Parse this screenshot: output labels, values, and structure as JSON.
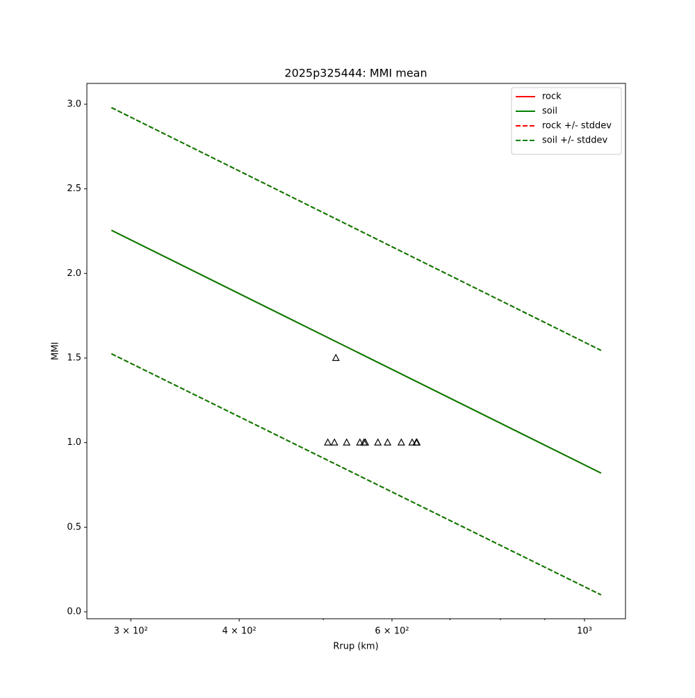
{
  "chart_data": {
    "type": "line",
    "title": "2025p325444: MMI mean",
    "xlabel": "Rrup (km)",
    "ylabel": "MMI",
    "xscale": "log",
    "xlim": [
      267,
      1115
    ],
    "ylim": [
      -0.041,
      3.123
    ],
    "xticks": [
      {
        "value": 300,
        "label": "3 × 10²"
      },
      {
        "value": 400,
        "label": "4 × 10²"
      },
      {
        "value": 600,
        "label": "6 × 10²"
      },
      {
        "value": 1000,
        "label": "10³"
      }
    ],
    "xminorticks": [
      500,
      700,
      800,
      900
    ],
    "yticks": [
      {
        "value": 0,
        "label": "0.0"
      },
      {
        "value": 0.5,
        "label": "0.5"
      },
      {
        "value": 1,
        "label": "1.0"
      },
      {
        "value": 1.5,
        "label": "1.5"
      },
      {
        "value": 2,
        "label": "2.0"
      },
      {
        "value": 2.5,
        "label": "2.5"
      },
      {
        "value": 3,
        "label": "3.0"
      }
    ],
    "legend": "upper right",
    "x": [
      285,
      1045
    ],
    "series": [
      {
        "name": "rock",
        "color": "#ff0000",
        "style": "solid",
        "values": [
          2.255,
          0.82
        ]
      },
      {
        "name": "soil",
        "color": "#008000",
        "style": "solid",
        "values": [
          2.255,
          0.82
        ]
      },
      {
        "name": "rock +/- stddev",
        "color": "#ff0000",
        "style": "dashed",
        "upper": [
          2.98,
          1.545
        ],
        "lower": [
          1.525,
          0.1
        ]
      },
      {
        "name": "soil +/- stddev",
        "color": "#008000",
        "style": "dashed",
        "upper": [
          2.98,
          1.545
        ],
        "lower": [
          1.525,
          0.1
        ]
      }
    ],
    "points": {
      "color": "#000000",
      "x": [
        506,
        515,
        517,
        532,
        551,
        557,
        559,
        578,
        593,
        615,
        633,
        640,
        641
      ],
      "y": [
        1,
        1,
        1.5,
        1,
        1,
        1,
        1,
        1,
        1,
        1,
        1,
        1,
        1
      ]
    }
  }
}
